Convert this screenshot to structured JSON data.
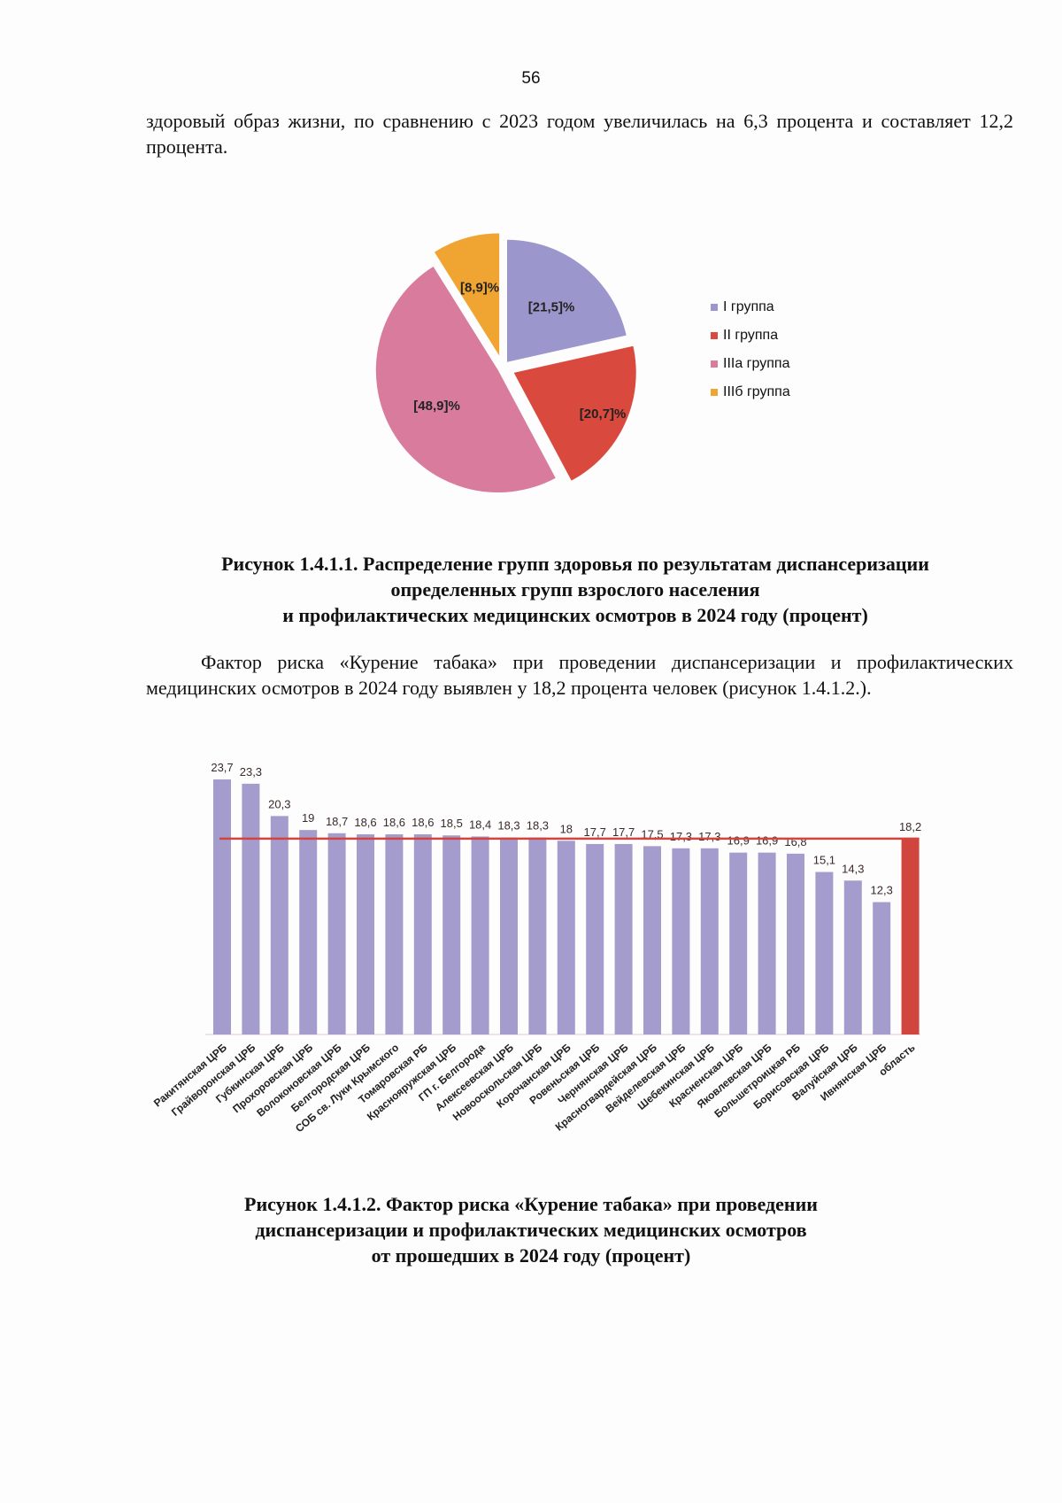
{
  "page_number": "56",
  "text1": "здоровый образ жизни, по сравнению с 2023 годом увеличилась на 6,3 процента и составляет 12,2 процента.",
  "caption1": [
    "Рисунок 1.4.1.1. Распределение групп здоровья по результатам диспансеризации",
    "определенных групп взрослого населения",
    "и профилактических медицинских осмотров в 2024 году (процент)"
  ],
  "text2": "Фактор риска «Курение табака» при проведении диспансеризации и профилактических медицинских осмотров в 2024 году выявлен у 18,2 процента человек (рисунок 1.4.1.2.).",
  "caption2": [
    "Рисунок 1.4.1.2. Фактор риска «Курение табака» при проведении",
    "диспансеризации и профилактических медицинских осмотров",
    "от прошедших в 2024 году (процент)"
  ],
  "chart_data": [
    {
      "type": "pie",
      "labels": [
        "I группа",
        "II группа",
        "IIIa группа",
        "IIIб группа"
      ],
      "values": [
        21.5,
        20.7,
        48.9,
        8.9
      ],
      "data_labels": [
        "[21,5]%",
        "[20,7]%",
        "[48,9]%",
        "[8,9]%"
      ],
      "colors": [
        "#9b96cc",
        "#d9493e",
        "#d97b9c",
        "#f0a431"
      ],
      "legend": "right"
    },
    {
      "type": "bar",
      "categories": [
        "Ракитянская ЦРБ",
        "Грайворонская ЦРБ",
        "Губкинская ЦРБ",
        "Прохоровская ЦРБ",
        "Волоконовская ЦРБ",
        "Белгородская ЦРБ",
        "СОБ св. Луки Крымского",
        "Томаровская РБ",
        "Краснояружская ЦРБ",
        "ГП г. Белгорода",
        "Алексеевская ЦРБ",
        "Новооскольская ЦРБ",
        "Корочанская ЦРБ",
        "Ровеньская ЦРБ",
        "Чернянская ЦРБ",
        "Красногвардейская ЦРБ",
        "Вейделевская ЦРБ",
        "Шебекинская ЦРБ",
        "Красненская ЦРБ",
        "Яковлевская ЦРБ",
        "Большетроицкая РБ",
        "Борисовская ЦРБ",
        "Валуйская ЦРБ",
        "Ивнянская ЦРБ",
        "область"
      ],
      "values": [
        23.7,
        23.3,
        20.3,
        19,
        18.7,
        18.6,
        18.6,
        18.6,
        18.5,
        18.4,
        18.3,
        18.3,
        18,
        17.7,
        17.7,
        17.5,
        17.3,
        17.3,
        16.9,
        16.9,
        16.8,
        15.1,
        14.3,
        12.3,
        18.2
      ],
      "data_labels": [
        "23,7",
        "23,3",
        "20,3",
        "19",
        "18,7",
        "18,6",
        "18,6",
        "18,6",
        "18,5",
        "18,4",
        "18,3",
        "18,3",
        "18",
        "17,7",
        "17,7",
        "17,5",
        "17,3",
        "17,3",
        "16,9",
        "16,9",
        "16,8",
        "15,1",
        "14,3",
        "12,3",
        "18,2"
      ],
      "reference_line": 18.2,
      "colors": {
        "bar": "#a49ccd",
        "highlight": "#d0453d",
        "line": "#d0453d"
      },
      "grid": false
    }
  ]
}
